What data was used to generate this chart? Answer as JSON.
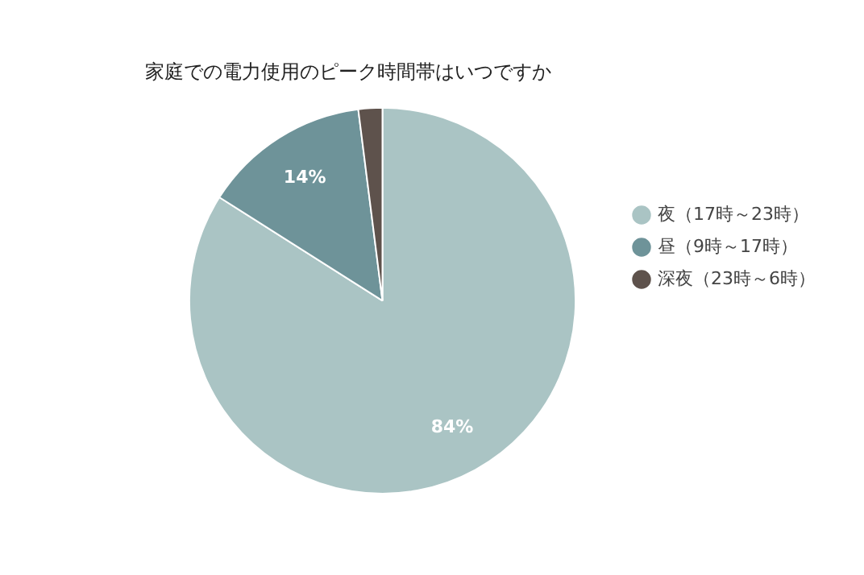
{
  "chart_data": {
    "type": "pie",
    "title": "家庭での電力使用のピーク時間帯はいつですか",
    "categories": [
      "夜（17時～23時）",
      "昼（9時～17時）",
      "深夜（23時～6時）"
    ],
    "values": [
      84,
      14,
      2
    ],
    "colors": [
      "#aac4c4",
      "#6e9399",
      "#5e524c"
    ],
    "value_labels": [
      "84%",
      "14%",
      null
    ],
    "legend": "right"
  }
}
